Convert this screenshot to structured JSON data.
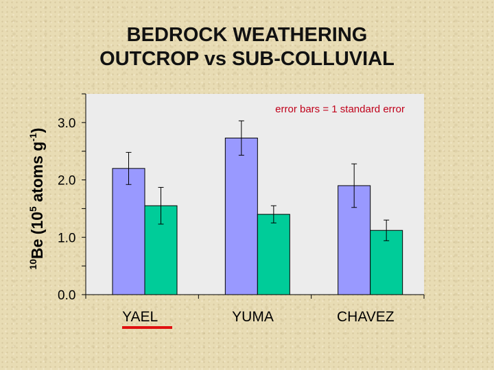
{
  "title": {
    "line1": "BEDROCK WEATHERING",
    "line2": "OUTCROP vs SUB-COLLUVIAL"
  },
  "colors": {
    "plot_background": "#ececec",
    "series_1": "#9999ff",
    "series_2": "#00cc99",
    "annotation": "#c0001a",
    "underline": "#e01010"
  },
  "chart_data": {
    "type": "bar",
    "categories": [
      "YAEL",
      "YUMA",
      "CHAVEZ"
    ],
    "series": [
      {
        "values": [
          2.2,
          2.73,
          1.9
        ],
        "errors": [
          0.28,
          0.3,
          0.38
        ]
      },
      {
        "values": [
          1.55,
          1.4,
          1.12
        ],
        "errors": [
          0.32,
          0.15,
          0.18
        ]
      }
    ],
    "ylabel": {
      "sup1": "10",
      "main1": "Be (10",
      "sup2": "5",
      "main2": " atoms g",
      "sup3": "-1",
      "main3": ")"
    },
    "ylim": [
      0,
      3.5
    ],
    "yticks": [
      0,
      1,
      2,
      3
    ],
    "ytick_labels": [
      "0.0",
      "1.0",
      "2.0",
      "3.0"
    ],
    "annotation": "error bars = 1 standard error",
    "grid": false,
    "legend": "none",
    "highlighted_category": "YAEL"
  }
}
